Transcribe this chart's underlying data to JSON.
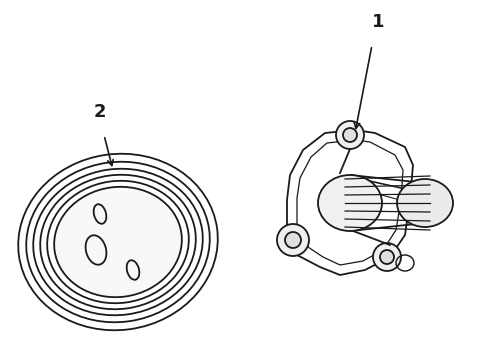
{
  "background_color": "#ffffff",
  "line_color": "#1a1a1a",
  "line_width": 1.3,
  "label1_text": "1",
  "label2_text": "2",
  "figsize": [
    4.9,
    3.6
  ],
  "dpi": 100
}
